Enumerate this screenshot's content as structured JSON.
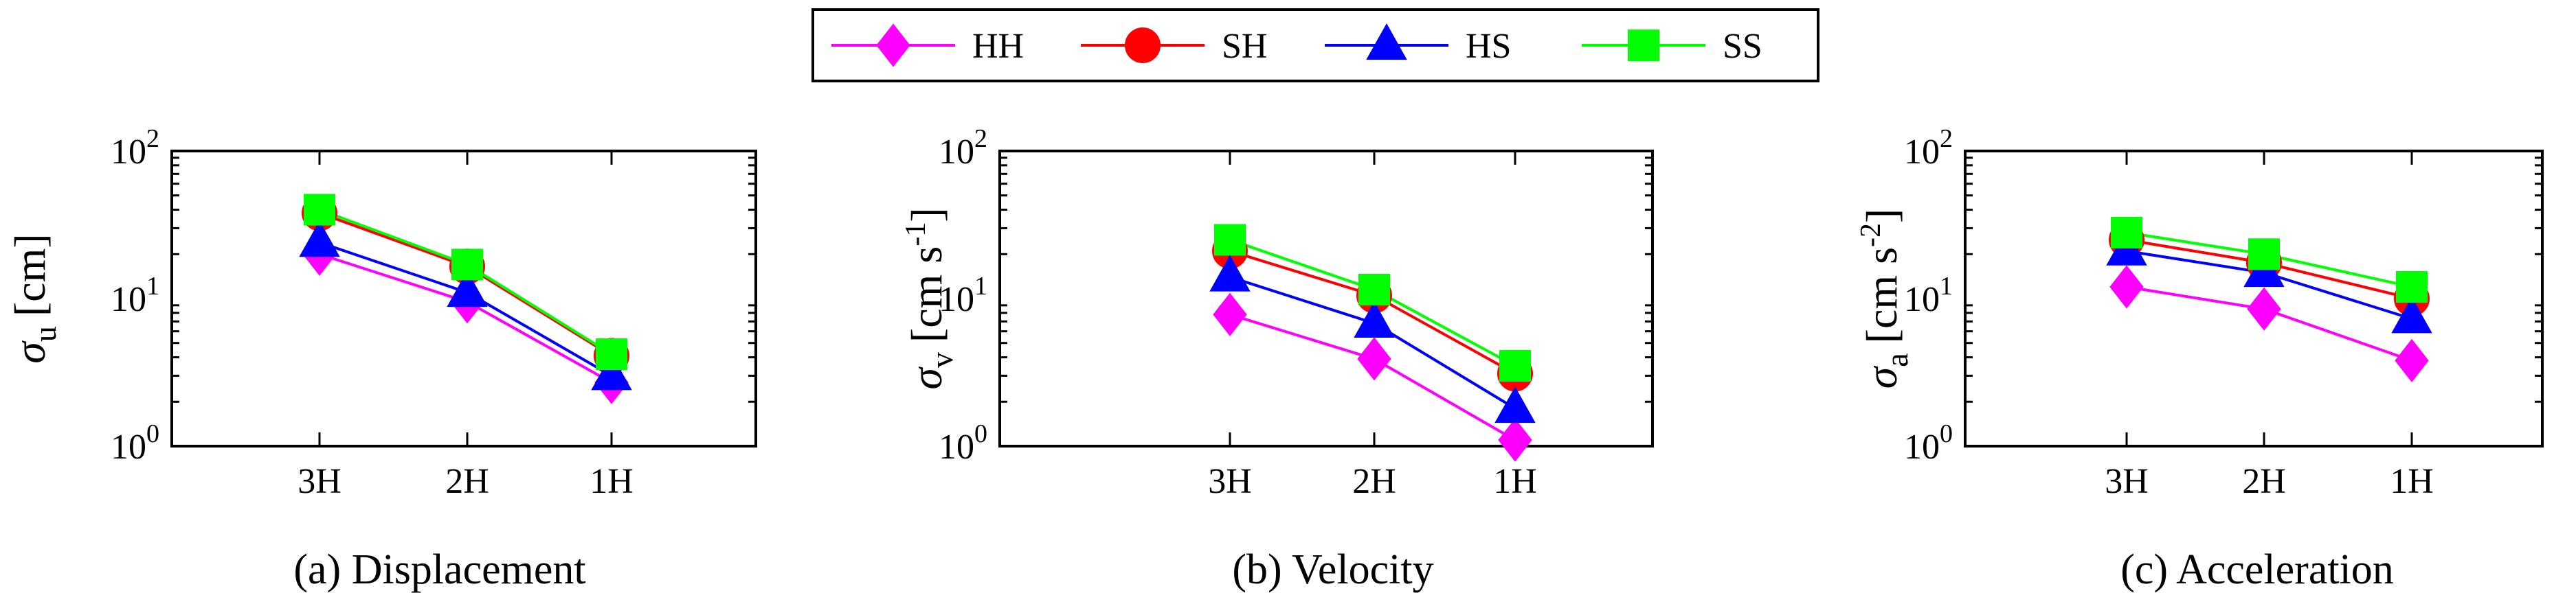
{
  "legend": [
    {
      "name": "HH",
      "color": "#ff00ff",
      "marker": "diamond"
    },
    {
      "name": "SH",
      "color": "#ff0000",
      "marker": "circle"
    },
    {
      "name": "HS",
      "color": "#0000ff",
      "marker": "triangle"
    },
    {
      "name": "SS",
      "color": "#00ff00",
      "marker": "square"
    }
  ],
  "chart_data": [
    {
      "type": "line",
      "title": "(a) Displacement",
      "ylabel": {
        "symbol": "σ",
        "sub": "u",
        "unit": "[cm]"
      },
      "yscale": "log",
      "ylim": [
        1,
        100
      ],
      "yticks": [
        {
          "base": "10",
          "exp": "0"
        },
        {
          "base": "10",
          "exp": "1"
        },
        {
          "base": "10",
          "exp": "2"
        }
      ],
      "categories": [
        "3H",
        "2H",
        "1H"
      ],
      "series": [
        {
          "name": "HH",
          "values": [
            20,
            9.5,
            2.7
          ]
        },
        {
          "name": "SH",
          "values": [
            38,
            16.5,
            4.1
          ]
        },
        {
          "name": "HS",
          "values": [
            24,
            11,
            3.0
          ]
        },
        {
          "name": "SS",
          "values": [
            40,
            17,
            4.2
          ]
        }
      ]
    },
    {
      "type": "line",
      "title": "(b) Velocity",
      "ylabel": {
        "symbol": "σ",
        "sub": "v",
        "unit": "[cm s",
        "unit_sup": "-1",
        "unit_end": "]"
      },
      "yscale": "log",
      "ylim": [
        1,
        100
      ],
      "yticks": [
        {
          "base": "10",
          "exp": "0"
        },
        {
          "base": "10",
          "exp": "1"
        },
        {
          "base": "10",
          "exp": "2"
        }
      ],
      "categories": [
        "3H",
        "2H",
        "1H"
      ],
      "series": [
        {
          "name": "HH",
          "values": [
            7.8,
            3.9,
            1.1
          ]
        },
        {
          "name": "SH",
          "values": [
            21,
            10.5,
            3.1
          ]
        },
        {
          "name": "HS",
          "values": [
            14,
            6.8,
            1.8
          ]
        },
        {
          "name": "SS",
          "values": [
            25,
            11.5,
            3.5
          ]
        }
      ]
    },
    {
      "type": "line",
      "title": "(c) Acceleration",
      "ylabel": {
        "symbol": "σ",
        "sub": "a",
        "unit": "[cm s",
        "unit_sup": "-2",
        "unit_end": "]"
      },
      "yscale": "log",
      "ylim": [
        1,
        100
      ],
      "yticks": [
        {
          "base": "10",
          "exp": "0"
        },
        {
          "base": "10",
          "exp": "1"
        },
        {
          "base": "10",
          "exp": "2"
        }
      ],
      "categories": [
        "3H",
        "2H",
        "1H"
      ],
      "series": [
        {
          "name": "HH",
          "values": [
            12,
            8.5,
            3.8
          ]
        },
        {
          "name": "SH",
          "values": [
            25,
            17.5,
            10
          ]
        },
        {
          "name": "HS",
          "values": [
            21,
            15,
            7.3
          ]
        },
        {
          "name": "SS",
          "values": [
            28,
            20,
            12
          ]
        }
      ]
    }
  ]
}
